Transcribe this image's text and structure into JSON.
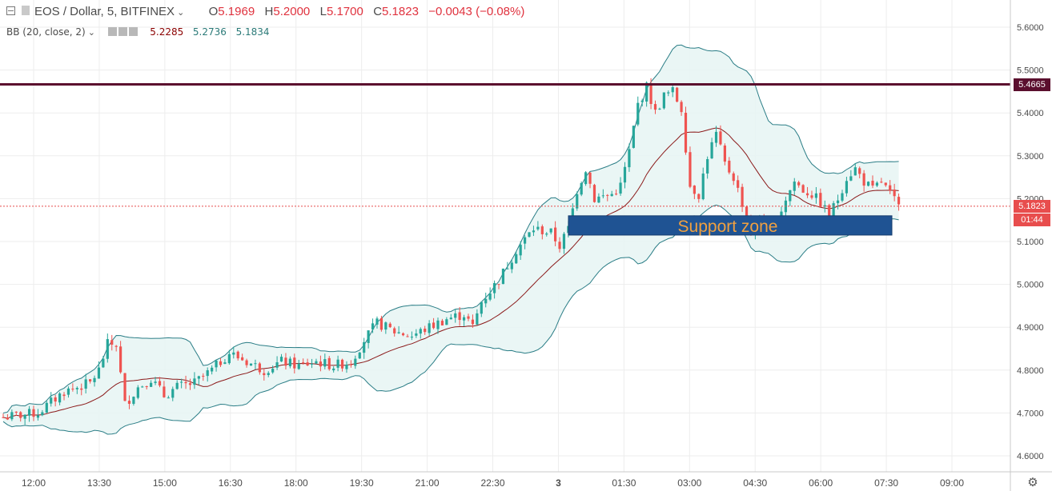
{
  "header": {
    "symbol": "EOS / Dollar, 5, BITFINEX",
    "open_label": "O",
    "open_value": "5.1969",
    "high_label": "H",
    "high_value": "5.2000",
    "low_label": "L",
    "low_value": "5.1700",
    "close_label": "C",
    "close_value": "5.1823",
    "change": "−0.0043 (−0.08%)"
  },
  "indicator": {
    "name": "BB (20, close, 2)",
    "basis": "5.2285",
    "upper": "5.2736",
    "lower": "5.1834"
  },
  "price_axis": {
    "ticks": [
      "5.6000",
      "5.5000",
      "5.4000",
      "5.3000",
      "5.2000",
      "5.1000",
      "5.0000",
      "4.9000",
      "4.8000",
      "4.7000",
      "4.6000"
    ]
  },
  "time_axis": {
    "ticks": [
      "12:00",
      "13:30",
      "15:00",
      "16:30",
      "18:00",
      "19:30",
      "21:00",
      "22:30",
      "3",
      "01:30",
      "03:00",
      "04:30",
      "06:00",
      "07:30",
      "09:00"
    ]
  },
  "tags": {
    "resistance_price": "5.4665",
    "last_price": "5.1823",
    "countdown": "01:44"
  },
  "annotations": {
    "support_label": "Support zone"
  },
  "colors": {
    "up": "#26a69a",
    "down": "#ef5350",
    "bb_basis": "#8b1a1a",
    "bb_band": "#2a7d86",
    "bb_fill": "#e6f4f3",
    "resistance": "#5b0f2e",
    "support": "#1f5393",
    "support_text": "#f0a040",
    "grid": "#ededed"
  },
  "chart_data": {
    "type": "candlestick",
    "title": "EOS / Dollar, 5, BITFINEX",
    "ylim": [
      4.58,
      5.62
    ],
    "horizontal_line": 5.4665,
    "last_price": 5.1823,
    "support_zone": [
      5.115,
      5.16
    ],
    "x_ticks": [
      "12:00",
      "13:30",
      "15:00",
      "16:30",
      "18:00",
      "19:30",
      "21:00",
      "22:30",
      "3",
      "01:30",
      "03:00",
      "04:30",
      "06:00",
      "07:30",
      "09:00"
    ],
    "price_path": [
      [
        0,
        4.69
      ],
      [
        8,
        4.7
      ],
      [
        14,
        4.75
      ],
      [
        20,
        4.77
      ],
      [
        22,
        4.8
      ],
      [
        24,
        4.86
      ],
      [
        26,
        4.86
      ],
      [
        28,
        4.72
      ],
      [
        31,
        4.76
      ],
      [
        34,
        4.78
      ],
      [
        37,
        4.74
      ],
      [
        40,
        4.76
      ],
      [
        44,
        4.77
      ],
      [
        48,
        4.8
      ],
      [
        52,
        4.84
      ],
      [
        56,
        4.82
      ],
      [
        60,
        4.8
      ],
      [
        64,
        4.82
      ],
      [
        68,
        4.81
      ],
      [
        72,
        4.82
      ],
      [
        76,
        4.81
      ],
      [
        80,
        4.82
      ],
      [
        83,
        4.87
      ],
      [
        86,
        4.91
      ],
      [
        90,
        4.89
      ],
      [
        94,
        4.88
      ],
      [
        98,
        4.9
      ],
      [
        102,
        4.92
      ],
      [
        106,
        4.93
      ],
      [
        108,
        4.9
      ],
      [
        110,
        4.96
      ],
      [
        114,
        5.01
      ],
      [
        118,
        5.08
      ],
      [
        122,
        5.13
      ],
      [
        126,
        5.12
      ],
      [
        128,
        5.09
      ],
      [
        130,
        5.13
      ],
      [
        132,
        5.22
      ],
      [
        134,
        5.27
      ],
      [
        136,
        5.2
      ],
      [
        140,
        5.21
      ],
      [
        142,
        5.23
      ],
      [
        144,
        5.31
      ],
      [
        146,
        5.42
      ],
      [
        148,
        5.46
      ],
      [
        150,
        5.4
      ],
      [
        152,
        5.44
      ],
      [
        154,
        5.45
      ],
      [
        156,
        5.41
      ],
      [
        158,
        5.23
      ],
      [
        160,
        5.21
      ],
      [
        162,
        5.3
      ],
      [
        164,
        5.35
      ],
      [
        166,
        5.28
      ],
      [
        168,
        5.25
      ],
      [
        170,
        5.19
      ],
      [
        172,
        5.12
      ],
      [
        174,
        5.16
      ],
      [
        176,
        5.12
      ],
      [
        178,
        5.15
      ],
      [
        180,
        5.2
      ],
      [
        182,
        5.24
      ],
      [
        184,
        5.22
      ],
      [
        186,
        5.21
      ],
      [
        188,
        5.19
      ],
      [
        190,
        5.16
      ],
      [
        192,
        5.2
      ],
      [
        194,
        5.25
      ],
      [
        196,
        5.27
      ],
      [
        198,
        5.24
      ],
      [
        200,
        5.22
      ],
      [
        202,
        5.24
      ],
      [
        204,
        5.21
      ],
      [
        206,
        5.18
      ]
    ]
  }
}
